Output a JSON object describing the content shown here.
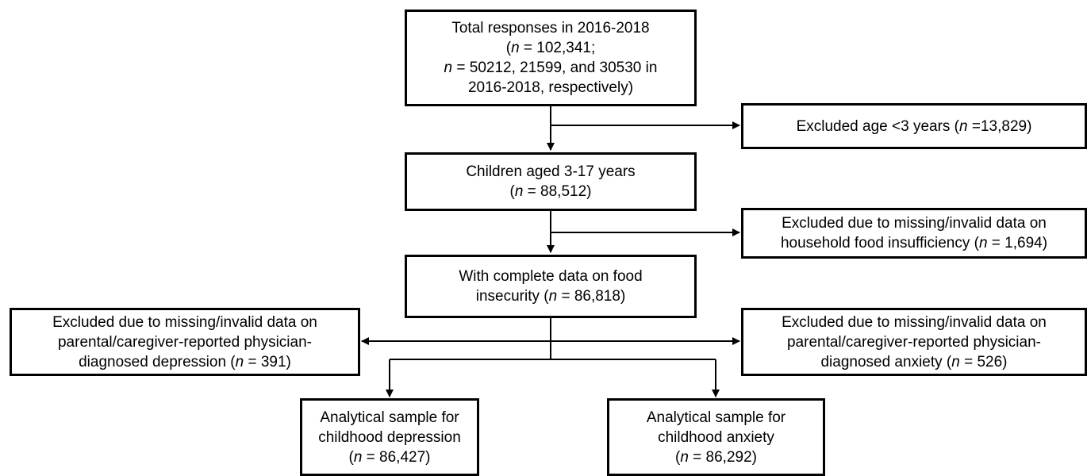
{
  "boxes": {
    "total": {
      "lines": [
        "Total responses in 2016-2018",
        "(n = 102,341;",
        "n = 50212, 21599, and 30530 in",
        "2016-2018, respectively)"
      ]
    },
    "excluded_age": {
      "lines": [
        "Excluded age <3 years (n =13,829)"
      ]
    },
    "children": {
      "lines": [
        "Children aged 3-17 years",
        "(n = 88,512)"
      ]
    },
    "excluded_food": {
      "lines": [
        "Excluded due to missing/invalid data on",
        "household food insufficiency (n = 1,694)"
      ]
    },
    "complete": {
      "lines": [
        "With complete data on food",
        "insecurity (n = 86,818)"
      ]
    },
    "excluded_depression": {
      "lines": [
        "Excluded due to missing/invalid data on",
        "parental/caregiver-reported physician-",
        "diagnosed depression (n = 391)"
      ]
    },
    "excluded_anxiety": {
      "lines": [
        "Excluded due to missing/invalid data on",
        "parental/caregiver-reported physician-",
        "diagnosed anxiety (n = 526)"
      ]
    },
    "sample_depression": {
      "lines": [
        "Analytical sample for",
        "childhood depression",
        "(n = 86,427)"
      ]
    },
    "sample_anxiety": {
      "lines": [
        "Analytical sample for",
        "childhood anxiety",
        "(n = 86,292)"
      ]
    }
  }
}
